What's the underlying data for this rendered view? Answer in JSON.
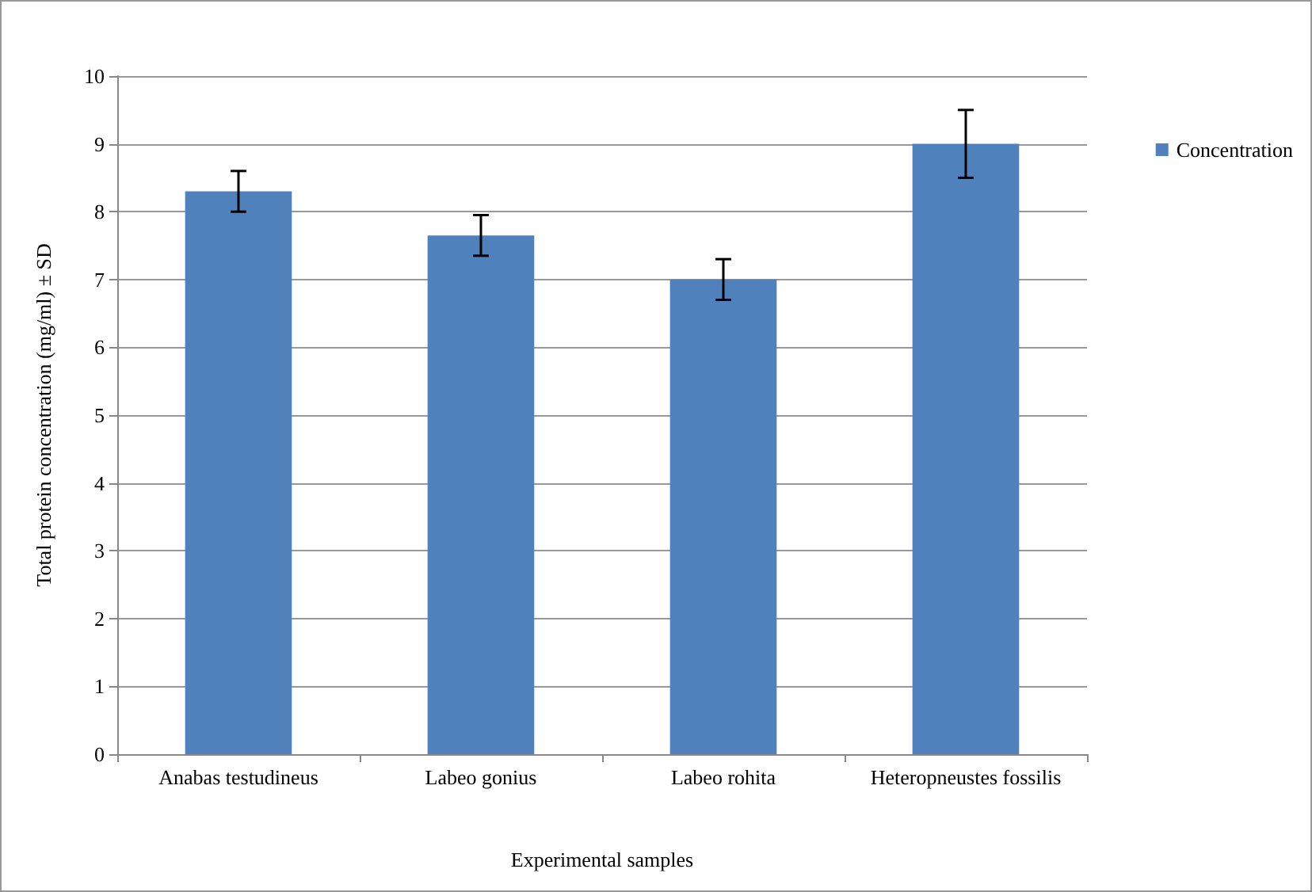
{
  "chart_data": {
    "type": "bar",
    "xlabel": "Experimental samples",
    "ylabel": "Total protein concentration (mg/ml) ± SD",
    "categories": [
      "Anabas testudineus",
      "Labeo gonius",
      "Labeo rohita",
      "Heteropneustes fossilis"
    ],
    "series": [
      {
        "name": "Concentration",
        "color": "#4f81bd",
        "values": [
          8.3,
          7.65,
          7.0,
          9.0
        ],
        "errors": [
          0.3,
          0.3,
          0.3,
          0.5
        ]
      }
    ],
    "ylim": [
      0,
      10
    ],
    "yticks": [
      0,
      1,
      2,
      3,
      4,
      5,
      6,
      7,
      8,
      9,
      10
    ],
    "grid": "y",
    "legend": "right"
  }
}
